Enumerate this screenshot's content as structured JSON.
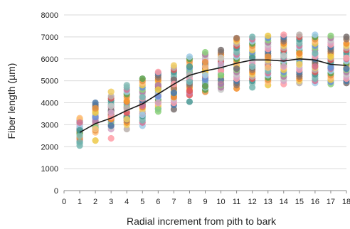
{
  "chart_data": {
    "type": "scatter",
    "title": "",
    "xlabel": "Radial increment from pith to bark",
    "ylabel": "Fiber length (µm)",
    "xlim": [
      0,
      18
    ],
    "ylim": [
      0,
      8000
    ],
    "x_ticks": [
      "0",
      "1",
      "2",
      "3",
      "4",
      "5",
      "6",
      "7",
      "8",
      "9",
      "10",
      "11",
      "12",
      "13",
      "14",
      "15",
      "16",
      "17",
      "18"
    ],
    "y_ticks": [
      "0",
      "1000",
      "2000",
      "3000",
      "4000",
      "5000",
      "6000",
      "7000",
      "8000"
    ],
    "grid": "horizontal",
    "legend": "none",
    "point_colors": [
      "#4e79a7",
      "#f28e2b",
      "#e15759",
      "#76b7b2",
      "#59a14f",
      "#edc948",
      "#b07aa1",
      "#ff9da7",
      "#9c755f",
      "#bab0ac",
      "#86bcb6",
      "#a0cbe8",
      "#ffbe7d",
      "#8cd17d",
      "#d4a6c8",
      "#79706e",
      "#f1ce63",
      "#499894",
      "#d37295",
      "#e49444",
      "#6b8fd6",
      "#c7c7c7"
    ],
    "series": [
      {
        "name": "",
        "x": [
          1,
          1,
          1,
          1,
          1,
          1,
          1,
          1,
          1,
          1,
          1,
          1,
          1,
          1,
          1,
          1,
          1,
          1,
          1,
          1,
          1,
          1,
          1,
          1,
          1,
          2,
          2,
          2,
          2,
          2,
          2,
          2,
          2,
          2,
          2,
          2,
          2,
          2,
          2,
          2,
          2,
          2,
          2,
          2,
          2,
          2,
          2,
          2,
          2,
          2,
          3,
          3,
          3,
          3,
          3,
          3,
          3,
          3,
          3,
          3,
          3,
          3,
          3,
          3,
          3,
          3,
          3,
          3,
          3,
          3,
          3,
          3,
          3,
          3,
          3,
          4,
          4,
          4,
          4,
          4,
          4,
          4,
          4,
          4,
          4,
          4,
          4,
          4,
          4,
          4,
          4,
          4,
          4,
          4,
          4,
          4,
          4,
          4,
          4,
          4,
          5,
          5,
          5,
          5,
          5,
          5,
          5,
          5,
          5,
          5,
          5,
          5,
          5,
          5,
          5,
          5,
          5,
          5,
          5,
          5,
          5,
          5,
          5,
          5,
          5,
          6,
          6,
          6,
          6,
          6,
          6,
          6,
          6,
          6,
          6,
          6,
          6,
          6,
          6,
          6,
          6,
          6,
          6,
          6,
          6,
          6,
          6,
          6,
          6,
          6,
          7,
          7,
          7,
          7,
          7,
          7,
          7,
          7,
          7,
          7,
          7,
          7,
          7,
          7,
          7,
          7,
          7,
          7,
          7,
          7,
          7,
          7,
          7,
          7,
          7,
          8,
          8,
          8,
          8,
          8,
          8,
          8,
          8,
          8,
          8,
          8,
          8,
          8,
          8,
          8,
          8,
          8,
          8,
          8,
          8,
          8,
          8,
          8,
          8,
          8,
          9,
          9,
          9,
          9,
          9,
          9,
          9,
          9,
          9,
          9,
          9,
          9,
          9,
          9,
          9,
          9,
          9,
          9,
          9,
          9,
          9,
          9,
          9,
          9,
          9,
          10,
          10,
          10,
          10,
          10,
          10,
          10,
          10,
          10,
          10,
          10,
          10,
          10,
          10,
          10,
          10,
          10,
          10,
          10,
          10,
          10,
          10,
          10,
          10,
          10,
          11,
          11,
          11,
          11,
          11,
          11,
          11,
          11,
          11,
          11,
          11,
          11,
          11,
          11,
          11,
          11,
          11,
          11,
          11,
          11,
          11,
          11,
          11,
          11,
          11,
          12,
          12,
          12,
          12,
          12,
          12,
          12,
          12,
          12,
          12,
          12,
          12,
          12,
          12,
          12,
          12,
          12,
          12,
          12,
          12,
          12,
          12,
          12,
          12,
          12,
          13,
          13,
          13,
          13,
          13,
          13,
          13,
          13,
          13,
          13,
          13,
          13,
          13,
          13,
          13,
          13,
          13,
          13,
          13,
          13,
          13,
          13,
          13,
          13,
          13,
          14,
          14,
          14,
          14,
          14,
          14,
          14,
          14,
          14,
          14,
          14,
          14,
          14,
          14,
          14,
          14,
          14,
          14,
          14,
          14,
          14,
          14,
          14,
          14,
          14,
          15,
          15,
          15,
          15,
          15,
          15,
          15,
          15,
          15,
          15,
          15,
          15,
          15,
          15,
          15,
          15,
          15,
          15,
          15,
          15,
          15,
          15,
          15,
          15,
          15,
          16,
          16,
          16,
          16,
          16,
          16,
          16,
          16,
          16,
          16,
          16,
          16,
          16,
          16,
          16,
          16,
          16,
          16,
          16,
          16,
          16,
          16,
          16,
          16,
          16,
          17,
          17,
          17,
          17,
          17,
          17,
          17,
          17,
          17,
          17,
          17,
          17,
          17,
          17,
          17,
          17,
          17,
          17,
          17,
          17,
          17,
          17,
          17,
          17,
          17,
          18,
          18,
          18,
          18,
          18,
          18,
          18,
          18,
          18,
          18,
          18,
          18,
          18,
          18,
          18,
          18,
          18,
          18,
          18,
          18,
          18,
          18,
          18,
          18,
          18
        ],
        "y": [
          2050,
          2150,
          2250,
          2350,
          2450,
          2550,
          2650,
          2700,
          2780,
          2850,
          2920,
          3000,
          3050,
          3100,
          3150,
          3200,
          3250,
          3300,
          2400,
          2600,
          2900,
          3100,
          2200,
          2500,
          2750,
          2280,
          2650,
          2750,
          2850,
          2950,
          3000,
          3100,
          3200,
          3300,
          3400,
          3500,
          3600,
          3700,
          3800,
          3900,
          4000,
          3050,
          3250,
          3450,
          3150,
          2900,
          3350,
          3550,
          2800,
          3750,
          2380,
          2800,
          2900,
          3000,
          3100,
          3200,
          3300,
          3400,
          3500,
          3600,
          3700,
          3800,
          3900,
          4000,
          4100,
          4200,
          4300,
          4500,
          3250,
          3450,
          3650,
          2950,
          3350,
          3550,
          3850,
          2800,
          3000,
          3100,
          3200,
          3300,
          3400,
          3500,
          3600,
          3700,
          3800,
          3900,
          4000,
          4100,
          4200,
          4300,
          4400,
          4500,
          4600,
          4700,
          4800,
          3350,
          3550,
          3750,
          3250,
          4050,
          2950,
          3100,
          3200,
          3300,
          3400,
          3500,
          3600,
          3700,
          3800,
          3900,
          4000,
          4100,
          4200,
          4300,
          4400,
          4500,
          4600,
          4700,
          4800,
          4900,
          5000,
          5100,
          3450,
          3850,
          4250,
          3600,
          3750,
          3850,
          3950,
          4050,
          4150,
          4250,
          4350,
          4450,
          4550,
          4650,
          4750,
          4850,
          4950,
          5050,
          5150,
          5250,
          5350,
          5400,
          4000,
          4400,
          4800,
          3700,
          4300,
          4600,
          3700,
          3900,
          4000,
          4100,
          4200,
          4300,
          4400,
          4500,
          4600,
          4700,
          4800,
          4900,
          5000,
          5100,
          5200,
          5300,
          5400,
          5500,
          5600,
          5700,
          4250,
          4650,
          5050,
          4450,
          4850,
          4050,
          4350,
          4500,
          4600,
          4700,
          4800,
          4900,
          5000,
          5100,
          5200,
          5300,
          5400,
          5500,
          5600,
          5700,
          5800,
          5900,
          6000,
          6100,
          4450,
          4950,
          5350,
          5650,
          4550,
          5250,
          4500,
          4600,
          4700,
          4800,
          4900,
          5000,
          5100,
          5200,
          5300,
          5400,
          5500,
          5600,
          5700,
          5800,
          5900,
          6000,
          6100,
          6200,
          6300,
          5050,
          5450,
          5650,
          5850,
          4750,
          5250,
          4600,
          4700,
          4800,
          4900,
          5000,
          5100,
          5200,
          5300,
          5400,
          5500,
          5600,
          5700,
          5800,
          5900,
          6000,
          6100,
          6200,
          6300,
          6400,
          5050,
          5450,
          5750,
          6050,
          4850,
          5250,
          4650,
          4800,
          4900,
          5000,
          5100,
          5200,
          5300,
          5400,
          5500,
          5600,
          5700,
          5800,
          5900,
          6000,
          6100,
          6200,
          6300,
          6400,
          6500,
          6600,
          6700,
          6800,
          6900,
          6950,
          5550,
          4700,
          4900,
          5000,
          5100,
          5200,
          5300,
          5400,
          5500,
          5600,
          5700,
          5800,
          5900,
          6000,
          6100,
          6200,
          6300,
          6400,
          6500,
          6600,
          6700,
          6800,
          6900,
          7000,
          5650,
          6050,
          4800,
          4950,
          5050,
          5150,
          5250,
          5350,
          5450,
          5550,
          5650,
          5750,
          5850,
          5950,
          6050,
          6150,
          6250,
          6350,
          6450,
          6550,
          6650,
          6750,
          6850,
          6950,
          7050,
          5600,
          6100,
          4850,
          5000,
          5100,
          5200,
          5300,
          5400,
          5500,
          5600,
          5700,
          5800,
          5900,
          6000,
          6100,
          6200,
          6300,
          6400,
          6500,
          6600,
          6700,
          6800,
          6900,
          7000,
          7100,
          5650,
          6150,
          4900,
          5000,
          5100,
          5200,
          5300,
          5400,
          5500,
          5600,
          5700,
          5800,
          5900,
          6000,
          6100,
          6200,
          6300,
          6400,
          6500,
          6600,
          6700,
          6800,
          6900,
          7000,
          7100,
          5750,
          6250,
          4900,
          5000,
          5100,
          5200,
          5300,
          5400,
          5500,
          5600,
          5700,
          5800,
          5900,
          6000,
          6100,
          6200,
          6300,
          6400,
          6500,
          6600,
          6700,
          6800,
          6900,
          7000,
          7100,
          5650,
          6250,
          4850,
          4950,
          5050,
          5150,
          5250,
          5350,
          5450,
          5550,
          5650,
          5750,
          5850,
          5950,
          6050,
          6150,
          6250,
          6350,
          6450,
          6550,
          6650,
          6750,
          6850,
          6950,
          7050,
          5600,
          6100,
          4900,
          5000,
          5100,
          5200,
          5300,
          5400,
          5500,
          5600,
          5650,
          5700,
          5750,
          5800,
          5900,
          6000,
          6100,
          6200,
          6300,
          6400,
          6500,
          6600,
          6700,
          6900,
          7000,
          5550,
          6050
        ]
      }
    ],
    "trend": {
      "x": [
        1,
        2,
        3,
        4,
        5,
        6,
        7,
        8,
        9,
        10,
        11,
        12,
        13,
        14,
        15,
        16,
        17,
        18
      ],
      "y": [
        2650,
        3050,
        3300,
        3650,
        3950,
        4400,
        4850,
        5250,
        5450,
        5600,
        5800,
        5950,
        5950,
        5900,
        6000,
        5950,
        5750,
        5700
      ]
    }
  }
}
